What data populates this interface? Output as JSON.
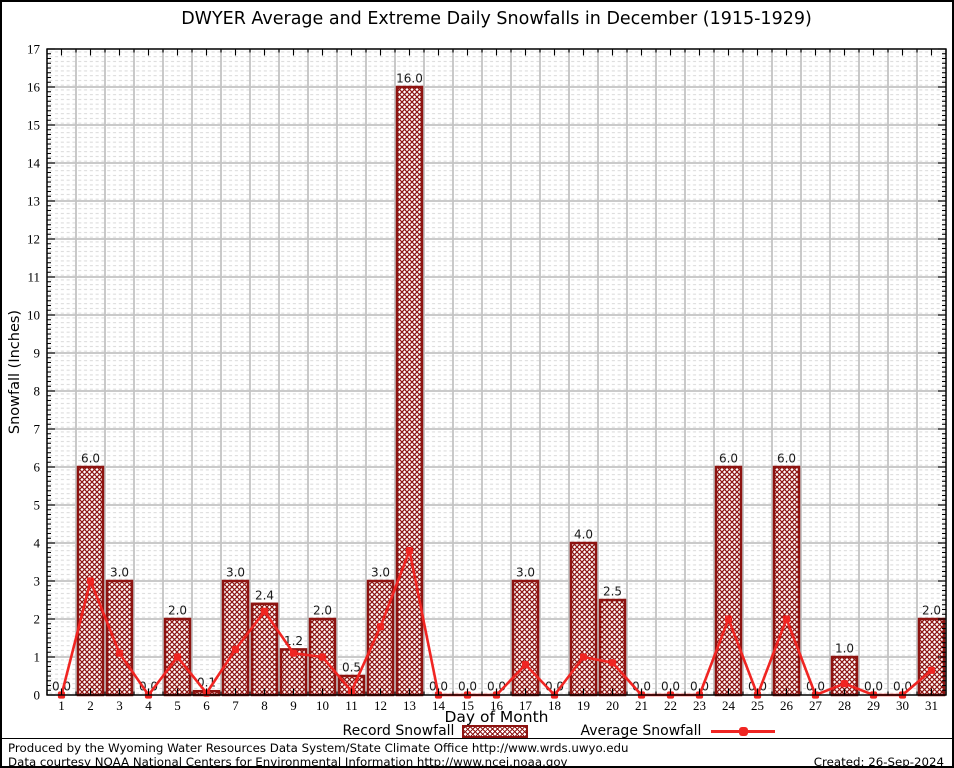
{
  "page": {
    "footer_line1": "Produced by the Wyoming Water Resources Data System/State Climate Office http://www.wrds.uwyo.edu",
    "footer_line2": "Data courtesy NOAA National Centers for Environmental Information http://www.ncei.noaa.gov",
    "created": "Created: 26-Sep-2024"
  },
  "chart_data": {
    "type": "bar",
    "title": "DWYER Average and Extreme Daily Snowfalls in December (1915-1929)",
    "xlabel": "Day of Month",
    "ylabel": "Snowfall (Inches)",
    "ylim": [
      0,
      17
    ],
    "y_ticks": [
      0,
      1,
      2,
      3,
      4,
      5,
      6,
      7,
      8,
      9,
      10,
      11,
      12,
      13,
      14,
      15,
      16,
      17
    ],
    "x_ticks": [
      1,
      2,
      3,
      4,
      5,
      6,
      7,
      8,
      9,
      10,
      11,
      12,
      13,
      14,
      15,
      16,
      17,
      18,
      19,
      20,
      21,
      22,
      23,
      24,
      25,
      26,
      27,
      28,
      29,
      30,
      31
    ],
    "grid": true,
    "legend_position": "bottom",
    "categories": [
      1,
      2,
      3,
      4,
      5,
      6,
      7,
      8,
      9,
      10,
      11,
      12,
      13,
      14,
      15,
      16,
      17,
      18,
      19,
      20,
      21,
      22,
      23,
      24,
      25,
      26,
      27,
      28,
      29,
      30,
      31
    ],
    "series": [
      {
        "name": "Record Snowfall",
        "type": "bar",
        "values": [
          0.0,
          6.0,
          3.0,
          0.0,
          2.0,
          0.1,
          3.0,
          2.4,
          1.2,
          2.0,
          0.5,
          3.0,
          16.0,
          0.0,
          0.0,
          0.0,
          3.0,
          0.0,
          4.0,
          2.5,
          0.0,
          0.0,
          0.0,
          6.0,
          0.0,
          6.0,
          0.0,
          1.0,
          0.0,
          0.0,
          2.0
        ],
        "labels": [
          "0.0",
          "6.0",
          "3.0",
          "0.0",
          "2.0",
          "0.1",
          "3.0",
          "2.4",
          "1.2",
          "2.0",
          "0.5",
          "3.0",
          "16.0",
          "0.0",
          "0.0",
          "0.0",
          "3.0",
          "0.0",
          "4.0",
          "2.5",
          "0.0",
          "0.0",
          "0.0",
          "6.0",
          "0.0",
          "6.0",
          "0.0",
          "1.0",
          "0.0",
          "0.0",
          "2.0"
        ],
        "fill_style": "crosshatch",
        "color": "#8d1310"
      },
      {
        "name": "Average Snowfall",
        "type": "line",
        "values": [
          0.0,
          3.0,
          1.1,
          0.0,
          1.0,
          0.05,
          1.2,
          2.2,
          1.1,
          1.0,
          0.1,
          1.8,
          3.8,
          0.0,
          0.0,
          0.0,
          0.8,
          0.0,
          1.0,
          0.85,
          0.0,
          0.0,
          0.0,
          2.0,
          0.0,
          2.0,
          0.0,
          0.3,
          0.0,
          0.0,
          0.65
        ],
        "color": "#f02522",
        "marker": "square"
      }
    ],
    "colors": {
      "bar_edge": "#8d1310",
      "line": "#f02522",
      "grid_major": "#c3c3c3",
      "grid_minor": "#dadada",
      "axis": "#000000",
      "bar_label_text": "#1a1a1a"
    }
  }
}
